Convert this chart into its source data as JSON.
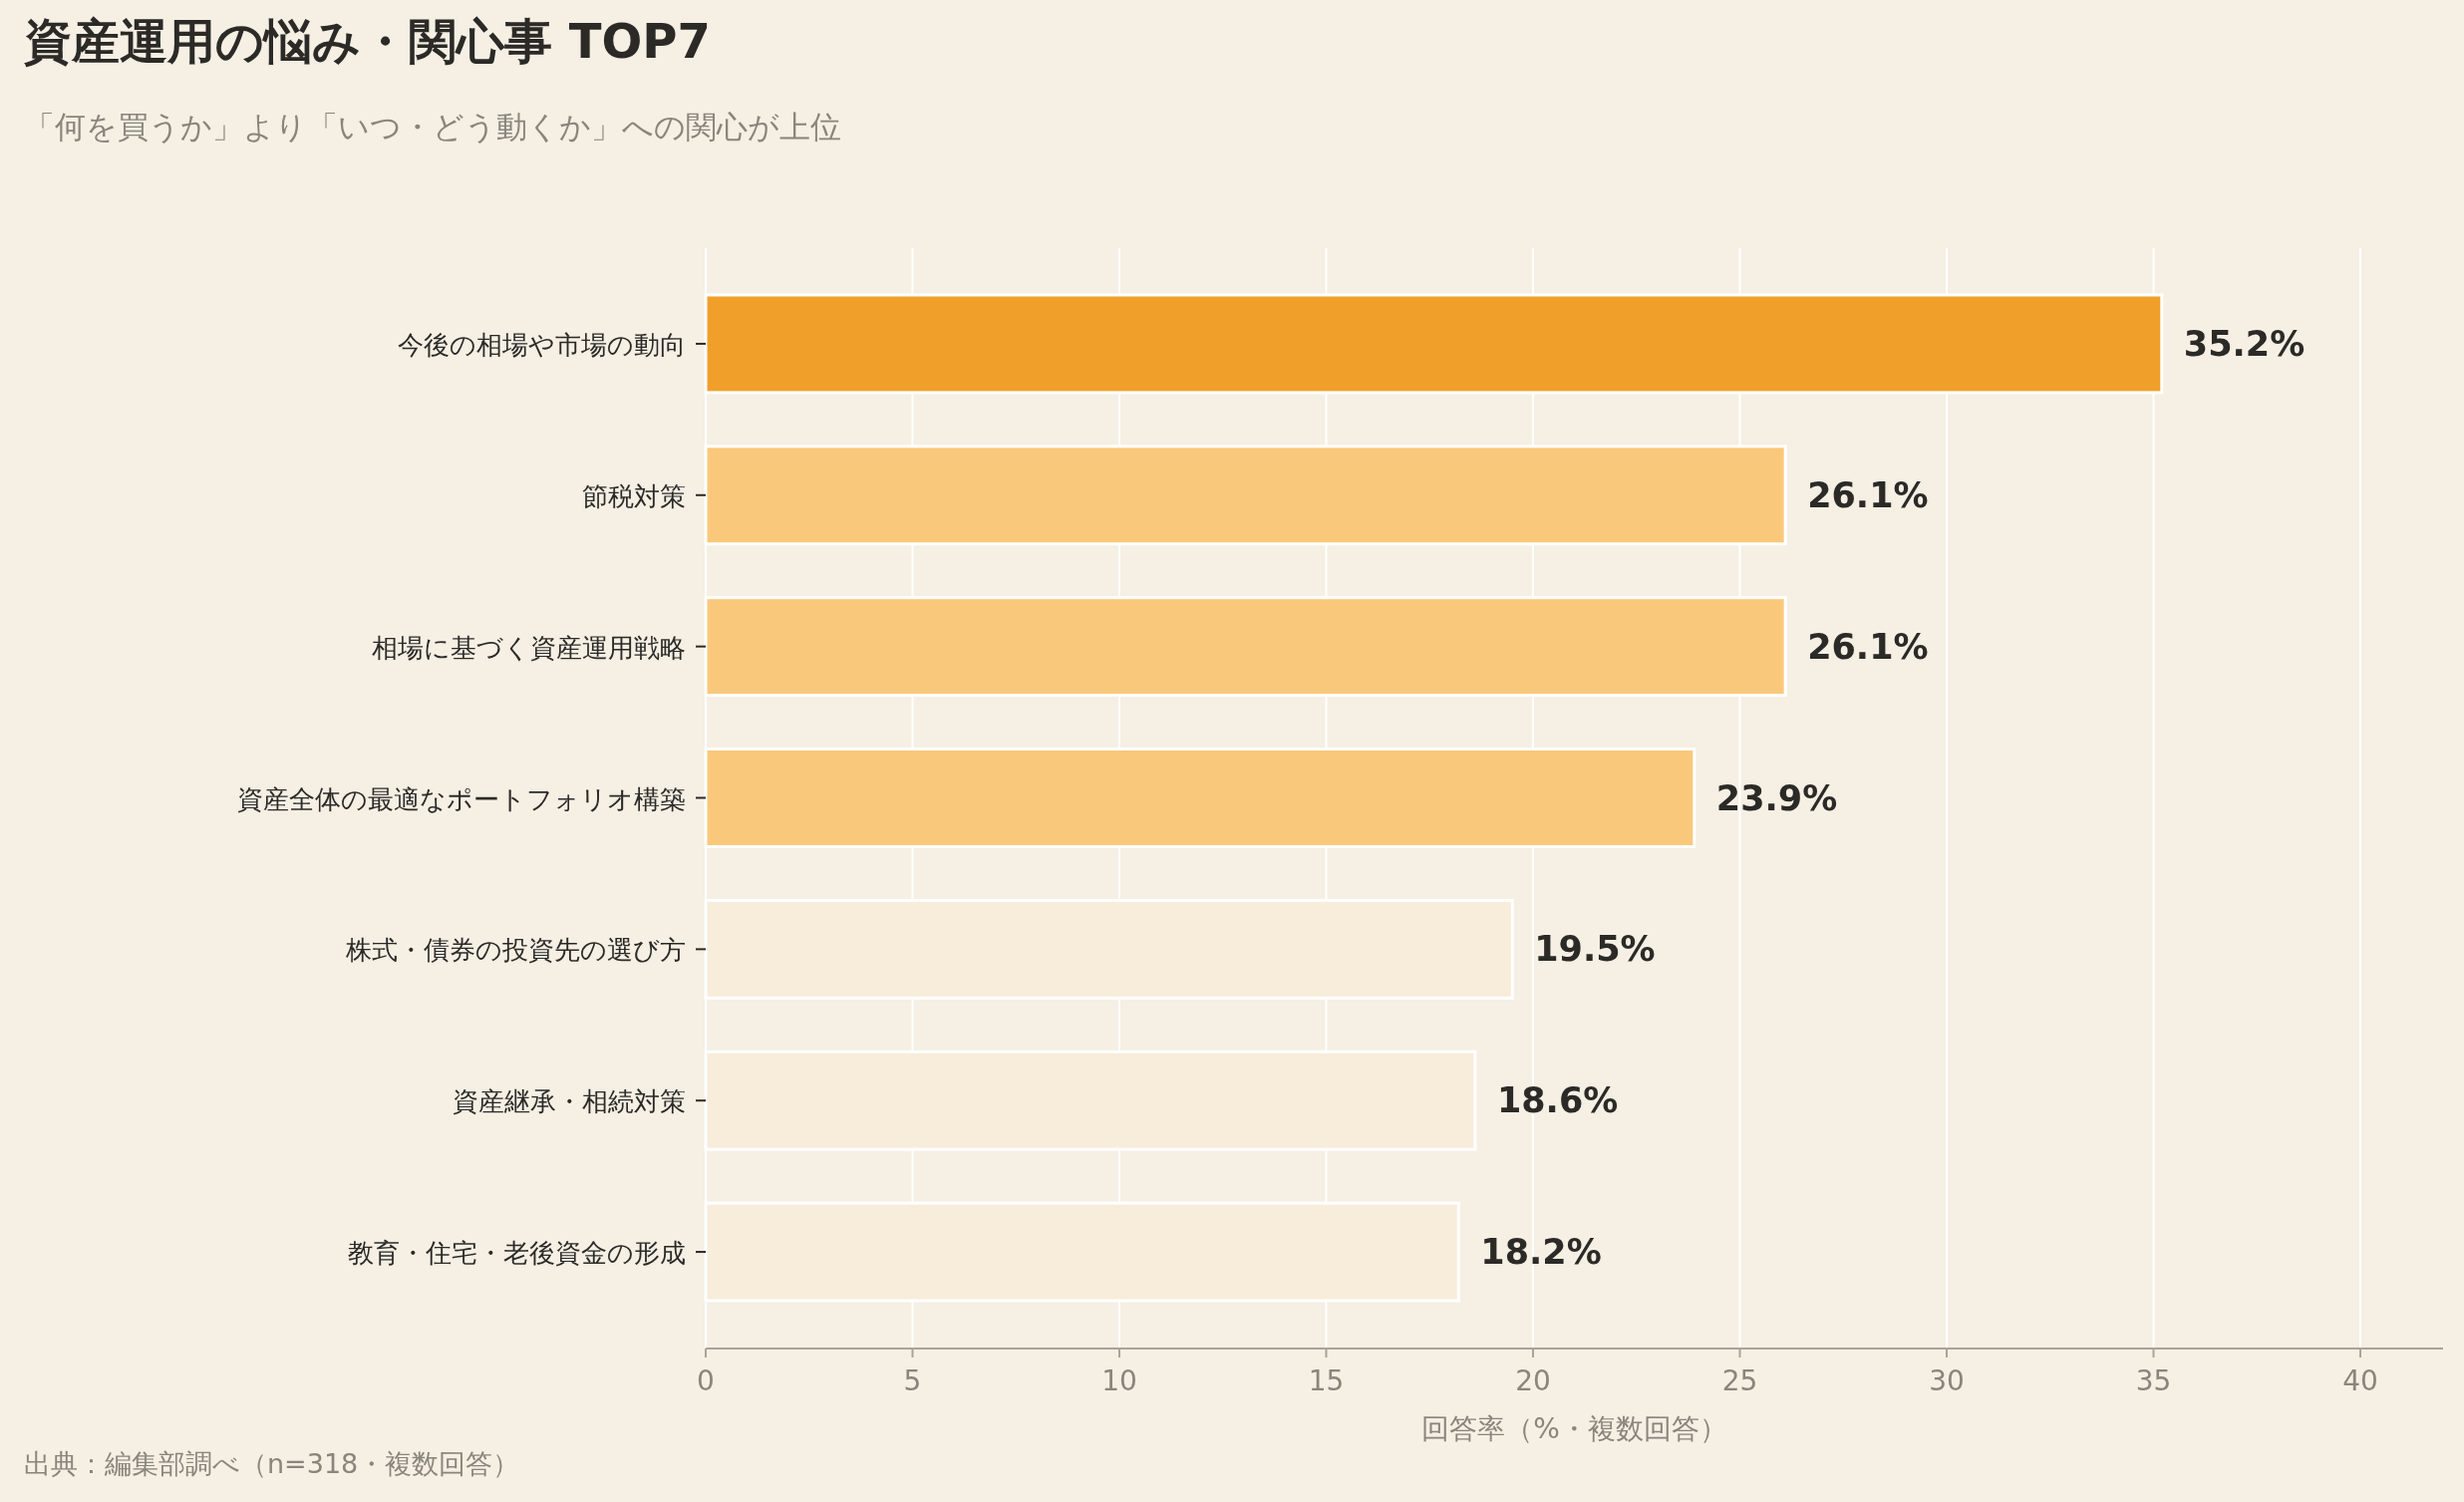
{
  "chart_data": {
    "type": "bar",
    "orientation": "horizontal",
    "title": "資産運用の悩み・関心事 TOP7",
    "subtitle": "「何を買うか」より「いつ・どう動くか」への関心が上位",
    "xlabel": "回答率（%・複数回答）",
    "annotations": [
      "出典：編集部調べ（n=318・複数回答）"
    ],
    "categories": [
      "今後の相場や市場の動向",
      "節税対策",
      "相場に基づく資産運用戦略",
      "資産全体の最適なポートフォリオ構築",
      "株式・債券の投資先の選び方",
      "資産継承・相続対策",
      "教育・住宅・老後資金の形成"
    ],
    "values": [
      35.2,
      26.1,
      26.1,
      23.9,
      19.5,
      18.6,
      18.2
    ],
    "value_labels": [
      "35.2%",
      "26.1%",
      "26.1%",
      "23.9%",
      "19.5%",
      "18.6%",
      "18.2%"
    ],
    "colors": [
      "#f0a02a",
      "#f9c87a",
      "#f9c87a",
      "#f9c87a",
      "#f8ecda",
      "#f8ecda",
      "#f8ecda"
    ],
    "xlim": [
      0,
      42
    ],
    "xticks": [
      0,
      5,
      10,
      15,
      20,
      25,
      30,
      35,
      40
    ],
    "grid": "x"
  }
}
